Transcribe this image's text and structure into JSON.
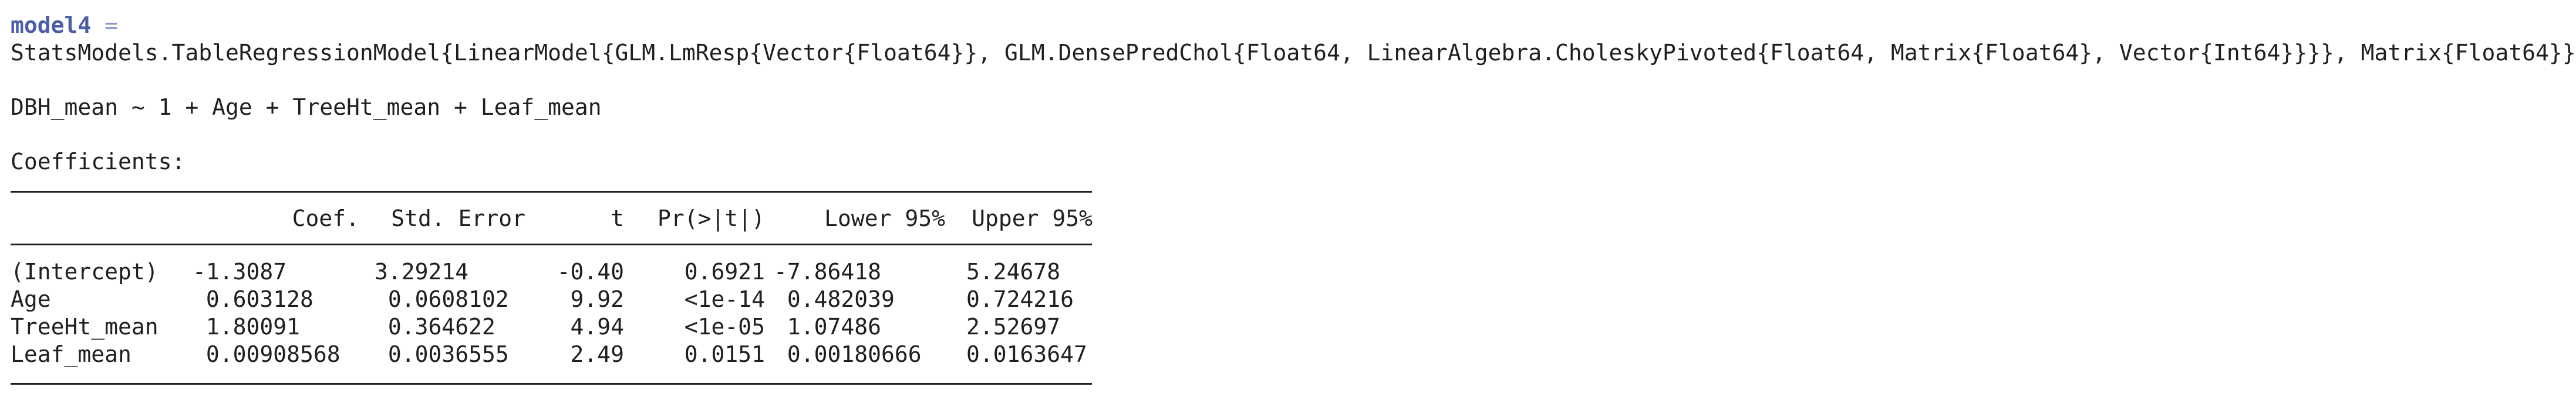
{
  "output": {
    "var_name": "model4",
    "equals": "=",
    "type_signature": "StatsModels.TableRegressionModel{LinearModel{GLM.LmResp{Vector{Float64}}, GLM.DensePredChol{Float64, LinearAlgebra.CholeskyPivoted{Float64, Matrix{Float64}, Vector{Int64}}}}, Matrix{Float64}}",
    "formula": "DBH_mean ~ 1 + Age + TreeHt_mean + Leaf_mean",
    "coefficients_label": "Coefficients:"
  },
  "table": {
    "headers": {
      "coef": "Coef.",
      "std_error": "Std. Error",
      "t": "t",
      "p": "Pr(>|t|)",
      "lower": "Lower 95%",
      "upper": "Upper 95%"
    },
    "rows": [
      {
        "name": "(Intercept)",
        "coef": "-1.3087",
        "std_error": "3.29214",
        "t": "-0.40",
        "p": "0.6921",
        "lower": "-7.86418",
        "upper": "5.24678"
      },
      {
        "name": "Age",
        "coef": " 0.603128",
        "std_error": " 0.0608102",
        "t": "9.92",
        "p": "<1e-14",
        "lower": " 0.482039",
        "upper": "0.724216"
      },
      {
        "name": "TreeHt_mean",
        "coef": " 1.80091",
        "std_error": " 0.364622",
        "t": "4.94",
        "p": "<1e-05",
        "lower": " 1.07486",
        "upper": "2.52697"
      },
      {
        "name": "Leaf_mean",
        "coef": " 0.00908568",
        "std_error": " 0.0036555",
        "t": "2.49",
        "p": "0.0151",
        "lower": " 0.00180666",
        "upper": "0.0163647"
      }
    ]
  },
  "colors": {
    "variable_name": "#4b5ea8",
    "text": "#1f1f1f",
    "background": "#ffffff"
  }
}
